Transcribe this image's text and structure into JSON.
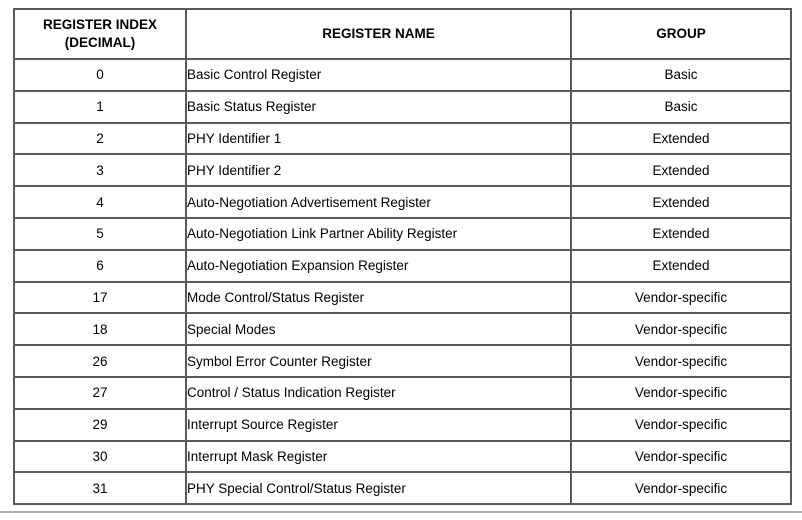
{
  "table": {
    "columns": [
      {
        "label": "REGISTER INDEX\n(DECIMAL)"
      },
      {
        "label": "REGISTER NAME"
      },
      {
        "label": "GROUP"
      }
    ],
    "rows": [
      {
        "index": "0",
        "name": "Basic Control Register",
        "group": "Basic"
      },
      {
        "index": "1",
        "name": "Basic Status Register",
        "group": "Basic"
      },
      {
        "index": "2",
        "name": "PHY Identifier 1",
        "group": "Extended"
      },
      {
        "index": "3",
        "name": "PHY Identifier 2",
        "group": "Extended"
      },
      {
        "index": "4",
        "name": "Auto-Negotiation Advertisement Register",
        "group": "Extended"
      },
      {
        "index": "5",
        "name": "Auto-Negotiation Link Partner Ability Register",
        "group": "Extended"
      },
      {
        "index": "6",
        "name": "Auto-Negotiation Expansion Register",
        "group": "Extended"
      },
      {
        "index": "17",
        "name": "Mode Control/Status Register",
        "group": "Vendor-specific"
      },
      {
        "index": "18",
        "name": "Special Modes",
        "group": "Vendor-specific"
      },
      {
        "index": "26",
        "name": "Symbol Error Counter Register",
        "group": "Vendor-specific"
      },
      {
        "index": "27",
        "name": "Control / Status Indication Register",
        "group": "Vendor-specific"
      },
      {
        "index": "29",
        "name": "Interrupt Source Register",
        "group": "Vendor-specific"
      },
      {
        "index": "30",
        "name": "Interrupt Mask Register",
        "group": "Vendor-specific"
      },
      {
        "index": "31",
        "name": "PHY Special Control/Status Register",
        "group": "Vendor-specific"
      }
    ]
  },
  "colors": {
    "table_border": "#5a5a5a",
    "text": "#000000",
    "bottom_rule": "#aeaeae",
    "background": "#ffffff"
  }
}
